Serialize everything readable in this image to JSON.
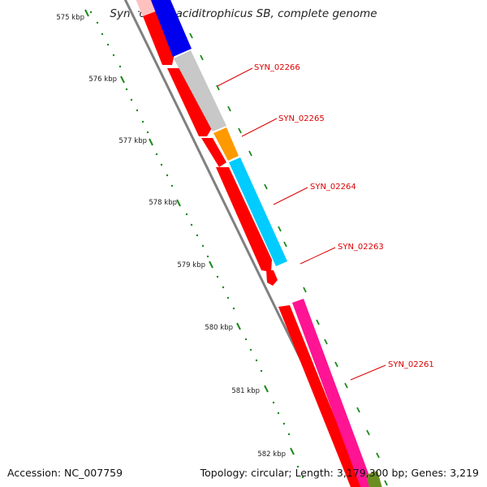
{
  "title": "Syntrophus aciditrophicus SB, complete genome",
  "footer": {
    "accession": "Accession: NC_007759",
    "topology": "Topology: circular",
    "length": "Length: 3,179,300 bp",
    "genes": "Genes: 3,219"
  },
  "ruler": {
    "tick_labels": [
      "575 kbp",
      "576 kbp",
      "577 kbp",
      "578 kbp",
      "579 kbp",
      "580 kbp",
      "581 kbp",
      "582 kbp"
    ]
  },
  "gene_labels": [
    "SYN_02266",
    "SYN_02265",
    "SYN_02264",
    "SYN_02263",
    "SYN_02261"
  ],
  "colors": {
    "backbone": "#808080",
    "forward_strand": "#ff0000",
    "gene_blue": "#0000ee",
    "gene_gray": "#c8c8c8",
    "gene_orange": "#ff9900",
    "gene_cyan": "#00ccff",
    "gene_magenta": "#ff1493",
    "gene_olive": "#6b8e23",
    "ticks": "#1a8a1a",
    "label_text": "#dd0000"
  }
}
